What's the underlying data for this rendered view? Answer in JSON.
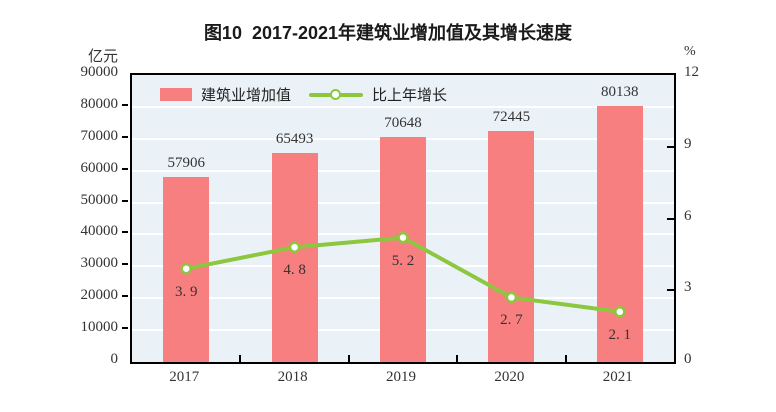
{
  "axes": {
    "left_unit": "亿元",
    "right_unit": "%",
    "left_ticks": [
      "0",
      "10000",
      "20000",
      "30000",
      "40000",
      "50000",
      "60000",
      "70000",
      "80000",
      "90000"
    ],
    "right_ticks": [
      "0",
      "3",
      "6",
      "9",
      "12"
    ]
  },
  "legend": {
    "items": [
      {
        "label": "建筑业增加值",
        "marker": "bar-swatch"
      },
      {
        "label": "比上年增长",
        "marker": "line-marker"
      }
    ]
  },
  "colors": {
    "plot_background": "#EAF2F8",
    "plot_border": "#000000",
    "grid": "#FFFFFF",
    "bar": "#F87F7F",
    "line": "#8DC63F",
    "marker_fill": "#FFFFFF",
    "text": "#333333",
    "title": "#1A1A1A"
  },
  "chart_data": {
    "type": "combo",
    "title": "图10  2017-2021年建筑业增加值及其增长速度",
    "categories": [
      "2017",
      "2018",
      "2019",
      "2020",
      "2021"
    ],
    "series": [
      {
        "name": "建筑业增加值",
        "type": "bar",
        "axis": "left",
        "unit": "亿元",
        "values": [
          57906,
          65493,
          70648,
          72445,
          80138
        ],
        "labels": [
          "57906",
          "65493",
          "70648",
          "72445",
          "80138"
        ],
        "color": "#F87F7F"
      },
      {
        "name": "比上年增长",
        "type": "line",
        "axis": "right",
        "unit": "%",
        "values": [
          3.9,
          4.8,
          5.2,
          2.7,
          2.1
        ],
        "labels": [
          "3. 9",
          "4. 8",
          "5. 2",
          "2. 7",
          "2. 1"
        ],
        "color": "#8DC63F",
        "marker": "circle-white-fill"
      }
    ],
    "left_axis": {
      "min": 0,
      "max": 90000,
      "step": 10000
    },
    "right_axis": {
      "min": 0,
      "max": 12,
      "step": 3
    },
    "grid": {
      "horizontal": true,
      "vertical": false,
      "color": "#FFFFFF"
    },
    "legend_position": "top-left-inside"
  }
}
